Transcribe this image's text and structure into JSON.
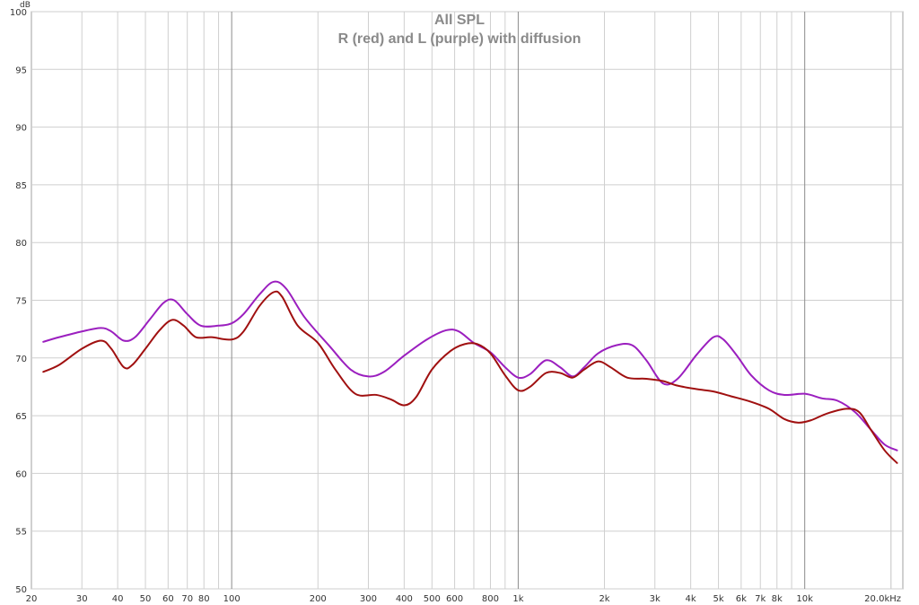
{
  "chart_data": {
    "type": "line",
    "title": "All SPL",
    "subtitle": "R (red) and L (purple) with diffusion",
    "ylabel": "dB",
    "xlabel": "",
    "x_scale": "log",
    "xlim": [
      20,
      22000
    ],
    "ylim": [
      50,
      100
    ],
    "grid": true,
    "x_tick_labels": [
      {
        "v": 20,
        "label": "20"
      },
      {
        "v": 30,
        "label": "30"
      },
      {
        "v": 40,
        "label": "40"
      },
      {
        "v": 50,
        "label": "50"
      },
      {
        "v": 60,
        "label": "60"
      },
      {
        "v": 70,
        "label": "70"
      },
      {
        "v": 80,
        "label": "80"
      },
      {
        "v": 100,
        "label": "100"
      },
      {
        "v": 200,
        "label": "200"
      },
      {
        "v": 300,
        "label": "300"
      },
      {
        "v": 400,
        "label": "400"
      },
      {
        "v": 500,
        "label": "500"
      },
      {
        "v": 600,
        "label": "600"
      },
      {
        "v": 800,
        "label": "800"
      },
      {
        "v": 1000,
        "label": "1k"
      },
      {
        "v": 2000,
        "label": "2k"
      },
      {
        "v": 3000,
        "label": "3k"
      },
      {
        "v": 4000,
        "label": "4k"
      },
      {
        "v": 5000,
        "label": "5k"
      },
      {
        "v": 6000,
        "label": "6k"
      },
      {
        "v": 7000,
        "label": "7k"
      },
      {
        "v": 8000,
        "label": "8k"
      },
      {
        "v": 10000,
        "label": "10k"
      },
      {
        "v": 20000,
        "label": "20.0kHz"
      }
    ],
    "y_ticks": [
      50,
      55,
      60,
      65,
      70,
      75,
      80,
      85,
      90,
      95,
      100
    ],
    "series": [
      {
        "name": "L (purple)",
        "color": "#9b1fbf",
        "points": [
          [
            22,
            71.4
          ],
          [
            25,
            71.8
          ],
          [
            30,
            72.3
          ],
          [
            35,
            72.6
          ],
          [
            38,
            72.3
          ],
          [
            42,
            71.5
          ],
          [
            46,
            71.8
          ],
          [
            52,
            73.4
          ],
          [
            58,
            74.8
          ],
          [
            63,
            75.0
          ],
          [
            70,
            73.8
          ],
          [
            78,
            72.8
          ],
          [
            90,
            72.8
          ],
          [
            100,
            73.0
          ],
          [
            110,
            73.8
          ],
          [
            125,
            75.5
          ],
          [
            140,
            76.6
          ],
          [
            155,
            76.0
          ],
          [
            180,
            73.5
          ],
          [
            220,
            71.0
          ],
          [
            260,
            69.0
          ],
          [
            300,
            68.4
          ],
          [
            340,
            68.8
          ],
          [
            400,
            70.2
          ],
          [
            480,
            71.6
          ],
          [
            560,
            72.4
          ],
          [
            620,
            72.3
          ],
          [
            700,
            71.3
          ],
          [
            800,
            70.5
          ],
          [
            900,
            69.2
          ],
          [
            1000,
            68.3
          ],
          [
            1100,
            68.6
          ],
          [
            1250,
            69.8
          ],
          [
            1400,
            69.2
          ],
          [
            1550,
            68.4
          ],
          [
            1700,
            69.2
          ],
          [
            1900,
            70.4
          ],
          [
            2200,
            71.1
          ],
          [
            2500,
            71.1
          ],
          [
            2800,
            69.8
          ],
          [
            3200,
            67.8
          ],
          [
            3600,
            68.2
          ],
          [
            4200,
            70.3
          ],
          [
            4800,
            71.8
          ],
          [
            5200,
            71.6
          ],
          [
            5800,
            70.2
          ],
          [
            6500,
            68.5
          ],
          [
            7500,
            67.2
          ],
          [
            8500,
            66.8
          ],
          [
            10000,
            66.9
          ],
          [
            11500,
            66.5
          ],
          [
            13000,
            66.3
          ],
          [
            15000,
            65.3
          ],
          [
            17000,
            63.8
          ],
          [
            19000,
            62.5
          ],
          [
            21000,
            62.0
          ]
        ]
      },
      {
        "name": "R (red)",
        "color": "#a01010",
        "points": [
          [
            22,
            68.8
          ],
          [
            25,
            69.4
          ],
          [
            30,
            70.8
          ],
          [
            35,
            71.5
          ],
          [
            38,
            70.8
          ],
          [
            42,
            69.2
          ],
          [
            45,
            69.4
          ],
          [
            50,
            70.8
          ],
          [
            56,
            72.4
          ],
          [
            62,
            73.3
          ],
          [
            68,
            72.8
          ],
          [
            75,
            71.8
          ],
          [
            85,
            71.8
          ],
          [
            100,
            71.6
          ],
          [
            110,
            72.3
          ],
          [
            125,
            74.5
          ],
          [
            140,
            75.7
          ],
          [
            150,
            75.3
          ],
          [
            170,
            72.8
          ],
          [
            200,
            71.3
          ],
          [
            230,
            69.0
          ],
          [
            270,
            66.9
          ],
          [
            320,
            66.8
          ],
          [
            360,
            66.4
          ],
          [
            400,
            65.9
          ],
          [
            440,
            66.6
          ],
          [
            500,
            69.0
          ],
          [
            580,
            70.6
          ],
          [
            650,
            71.2
          ],
          [
            720,
            71.2
          ],
          [
            800,
            70.4
          ],
          [
            900,
            68.5
          ],
          [
            1000,
            67.2
          ],
          [
            1100,
            67.5
          ],
          [
            1250,
            68.7
          ],
          [
            1400,
            68.7
          ],
          [
            1550,
            68.3
          ],
          [
            1700,
            69.0
          ],
          [
            1900,
            69.7
          ],
          [
            2100,
            69.2
          ],
          [
            2400,
            68.3
          ],
          [
            2800,
            68.2
          ],
          [
            3200,
            68.0
          ],
          [
            3600,
            67.6
          ],
          [
            4200,
            67.3
          ],
          [
            4800,
            67.1
          ],
          [
            5500,
            66.7
          ],
          [
            6500,
            66.2
          ],
          [
            7500,
            65.6
          ],
          [
            8500,
            64.7
          ],
          [
            9500,
            64.4
          ],
          [
            10500,
            64.6
          ],
          [
            12000,
            65.2
          ],
          [
            14000,
            65.6
          ],
          [
            15500,
            65.3
          ],
          [
            17000,
            63.8
          ],
          [
            19000,
            62.0
          ],
          [
            21000,
            60.9
          ]
        ]
      }
    ]
  }
}
